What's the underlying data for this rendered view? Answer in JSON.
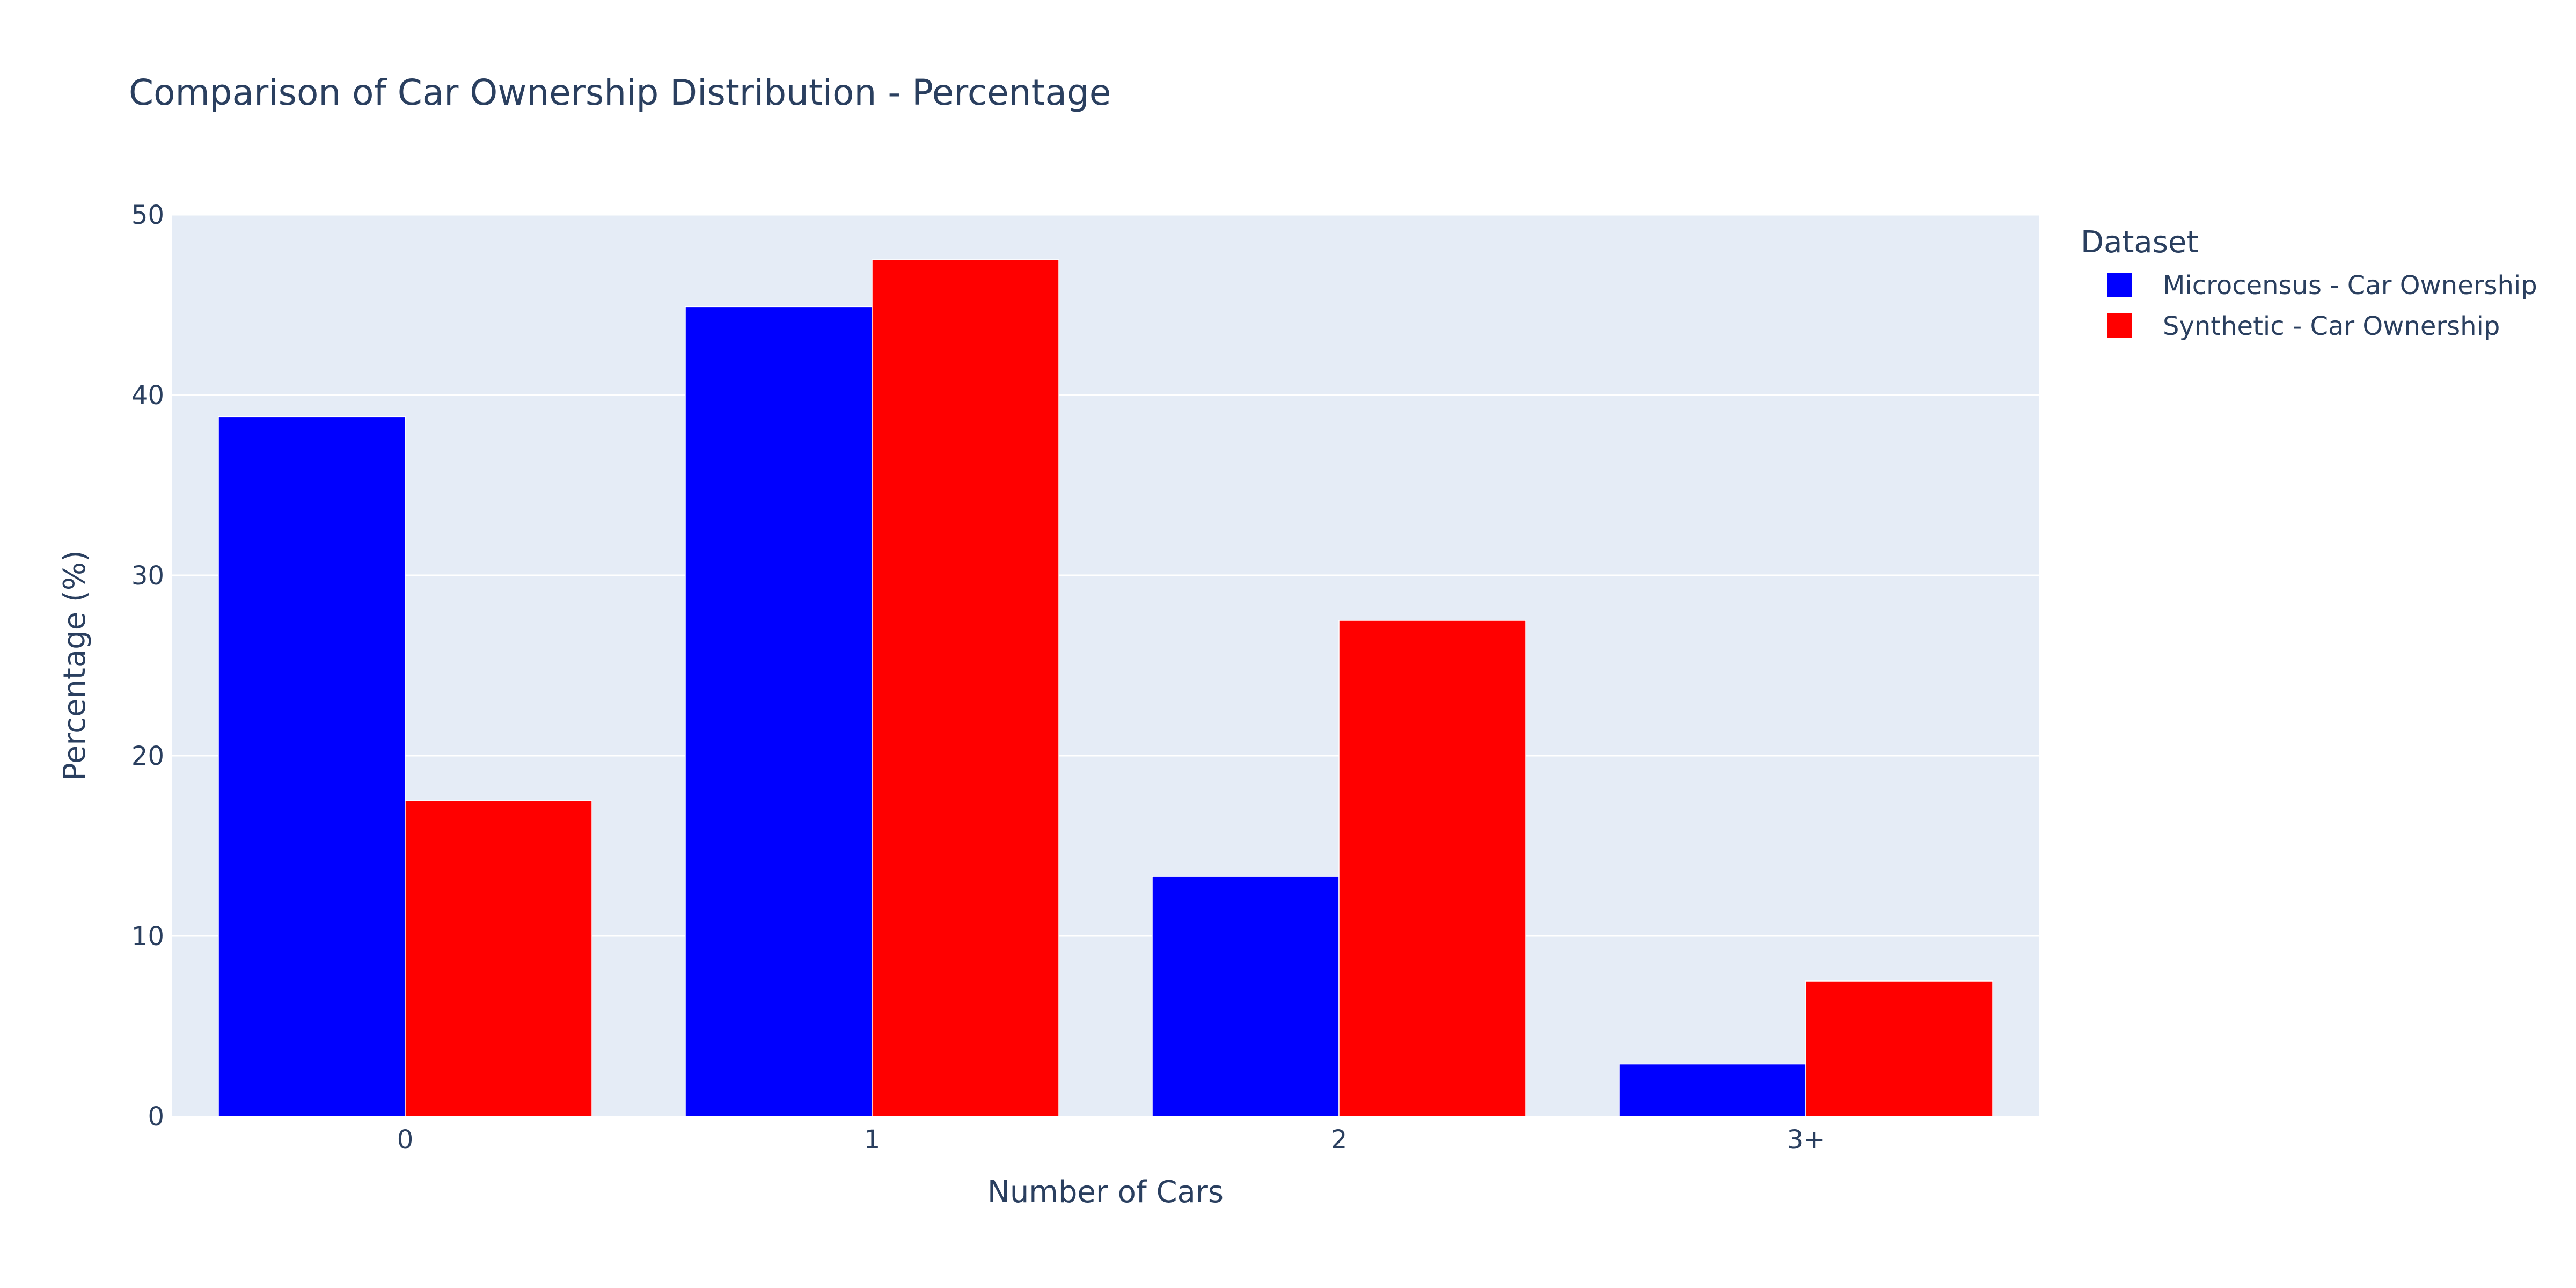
{
  "chart_data": {
    "type": "bar",
    "title": "Comparison of Car Ownership Distribution - Percentage",
    "xlabel": "Number of Cars",
    "ylabel": "Percentage (%)",
    "categories": [
      "0",
      "1",
      "2",
      "3+"
    ],
    "ylim": [
      0,
      50
    ],
    "yticks": [
      0,
      10,
      20,
      30,
      40,
      50
    ],
    "grid": true,
    "legend": {
      "title": "Dataset",
      "placement": "right"
    },
    "series": [
      {
        "name": "Microcensus - Car Ownership",
        "color": "#0000ff",
        "values": [
          38.8,
          44.9,
          13.3,
          2.9
        ]
      },
      {
        "name": "Synthetic - Car Ownership",
        "color": "#ff0000",
        "values": [
          17.5,
          47.5,
          27.5,
          7.5
        ]
      }
    ],
    "plot_background": "#e5ecf6",
    "text_color": "#2a3f5f"
  }
}
